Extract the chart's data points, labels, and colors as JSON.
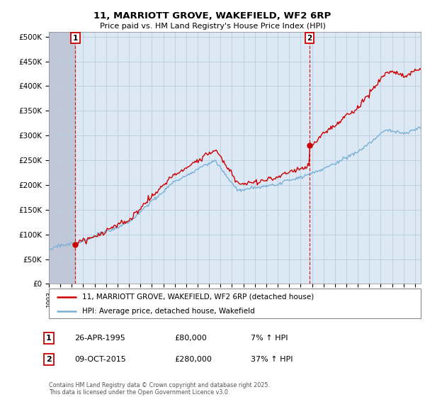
{
  "title1": "11, MARRIOTT GROVE, WAKEFIELD, WF2 6RP",
  "title2": "Price paid vs. HM Land Registry's House Price Index (HPI)",
  "ylabel_ticks": [
    "£0",
    "£50K",
    "£100K",
    "£150K",
    "£200K",
    "£250K",
    "£300K",
    "£350K",
    "£400K",
    "£450K",
    "£500K"
  ],
  "ytick_values": [
    0,
    50000,
    100000,
    150000,
    200000,
    250000,
    300000,
    350000,
    400000,
    450000,
    500000
  ],
  "ylim": [
    0,
    510000
  ],
  "xlim_start": 1993.0,
  "xlim_end": 2025.5,
  "marker1_x": 1995.32,
  "marker1_y": 80000,
  "marker1_label": "1",
  "marker2_x": 2015.77,
  "marker2_y": 280000,
  "marker2_label": "2",
  "legend_line1": "11, MARRIOTT GROVE, WAKEFIELD, WF2 6RP (detached house)",
  "legend_line2": "HPI: Average price, detached house, Wakefield",
  "table_row1": [
    "1",
    "26-APR-1995",
    "£80,000",
    "7% ↑ HPI"
  ],
  "table_row2": [
    "2",
    "09-OCT-2015",
    "£280,000",
    "37% ↑ HPI"
  ],
  "footnote": "Contains HM Land Registry data © Crown copyright and database right 2025.\nThis data is licensed under the Open Government Licence v3.0.",
  "line_color_red": "#cc0000",
  "line_color_blue": "#7ab0d4",
  "plot_bg_color": "#dce9f5",
  "background_color": "#ffffff",
  "grid_color": "#b8cfe0",
  "hatch_color": "#c0c8d8"
}
